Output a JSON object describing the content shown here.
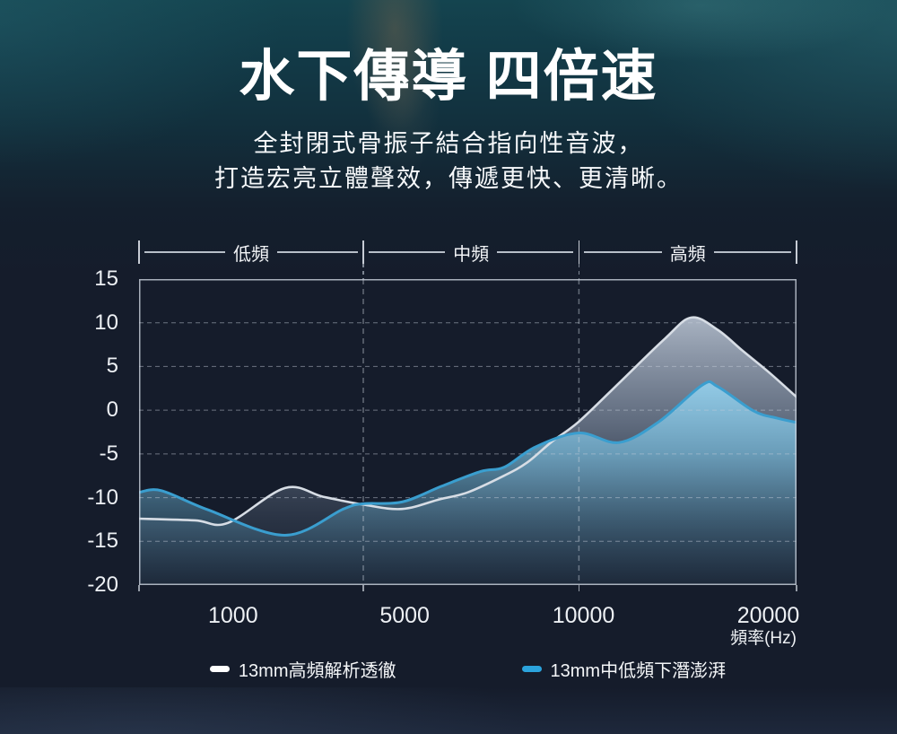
{
  "header": {
    "title": "水下傳導 四倍速",
    "subtitle_line1": "全封閉式骨振子結合指向性音波，",
    "subtitle_line2": "打造宏亮立體聲效，傳遞更快、更清晰。"
  },
  "chart_data": {
    "type": "area",
    "title": "",
    "xlabel": "頻率(Hz)",
    "ylabel": "",
    "ylim": [
      -20,
      15
    ],
    "grid": "dashed",
    "legend_position": "bottom",
    "y_ticks": [
      "15",
      "10",
      "5",
      "0",
      "-5",
      "-10",
      "-15",
      "-20"
    ],
    "y_gridline_values": [
      10,
      5,
      0,
      -5,
      -10,
      -15
    ],
    "x_ticks": [
      {
        "label": "1000",
        "f": 0.143
      },
      {
        "label": "5000",
        "f": 0.404
      },
      {
        "label": "10000",
        "f": 0.676
      },
      {
        "label": "20000",
        "f": 0.957
      }
    ],
    "bands": [
      {
        "label": "低頻",
        "from": 0.0,
        "to": 0.341
      },
      {
        "label": "中頻",
        "from": 0.341,
        "to": 0.669
      },
      {
        "label": "高頻",
        "from": 0.669,
        "to": 1.0
      }
    ],
    "series": [
      {
        "name": "13mm高頻解析透徹",
        "legend_color": "#ffffff",
        "line_color": "#d7dde5",
        "line_width": 2.6,
        "fill_stops": [
          [
            "0%",
            "rgba(206,217,232,0.80)"
          ],
          [
            "40%",
            "rgba(162,178,200,0.52)"
          ],
          [
            "75%",
            "rgba(118,138,162,0.22)"
          ],
          [
            "100%",
            "rgba(95,115,140,0.06)"
          ]
        ],
        "points_x_frac_db": [
          [
            0.0,
            -12.4
          ],
          [
            0.085,
            -12.6
          ],
          [
            0.135,
            -12.9
          ],
          [
            0.222,
            -8.9
          ],
          [
            0.28,
            -9.9
          ],
          [
            0.341,
            -10.8
          ],
          [
            0.4,
            -11.3
          ],
          [
            0.457,
            -10.2
          ],
          [
            0.5,
            -9.4
          ],
          [
            0.555,
            -7.5
          ],
          [
            0.59,
            -6.0
          ],
          [
            0.628,
            -3.6
          ],
          [
            0.669,
            -1.3
          ],
          [
            0.73,
            3.1
          ],
          [
            0.8,
            8.2
          ],
          [
            0.84,
            10.6
          ],
          [
            0.88,
            9.2
          ],
          [
            0.918,
            6.8
          ],
          [
            0.96,
            4.2
          ],
          [
            1.0,
            1.5
          ]
        ]
      },
      {
        "name": "13mm中低頻下潛澎湃",
        "legend_color": "#2ba3dc",
        "line_color": "#3a9ecf",
        "line_width": 3,
        "fill_stops": [
          [
            "0%",
            "rgba(148,206,234,0.95)"
          ],
          [
            "35%",
            "rgba(118,184,216,0.72)"
          ],
          [
            "70%",
            "rgba(88,148,178,0.38)"
          ],
          [
            "100%",
            "rgba(62,112,140,0.10)"
          ]
        ],
        "points_x_frac_db": [
          [
            0.0,
            -9.4
          ],
          [
            0.034,
            -9.2
          ],
          [
            0.105,
            -11.4
          ],
          [
            0.222,
            -14.3
          ],
          [
            0.311,
            -11.3
          ],
          [
            0.341,
            -10.7
          ],
          [
            0.4,
            -10.5
          ],
          [
            0.46,
            -8.7
          ],
          [
            0.52,
            -7.0
          ],
          [
            0.556,
            -6.5
          ],
          [
            0.603,
            -4.2
          ],
          [
            0.669,
            -2.6
          ],
          [
            0.73,
            -3.7
          ],
          [
            0.791,
            -1.3
          ],
          [
            0.857,
            2.9
          ],
          [
            0.88,
            2.7
          ],
          [
            0.935,
            -0.1
          ],
          [
            0.97,
            -0.9
          ],
          [
            1.0,
            -1.4
          ]
        ]
      }
    ],
    "style": {
      "border_color": "rgba(205,213,224,0.8)",
      "h_grid_color": "rgba(195,204,216,0.5)",
      "v_grid_color": "rgba(195,204,216,0.45)"
    }
  }
}
